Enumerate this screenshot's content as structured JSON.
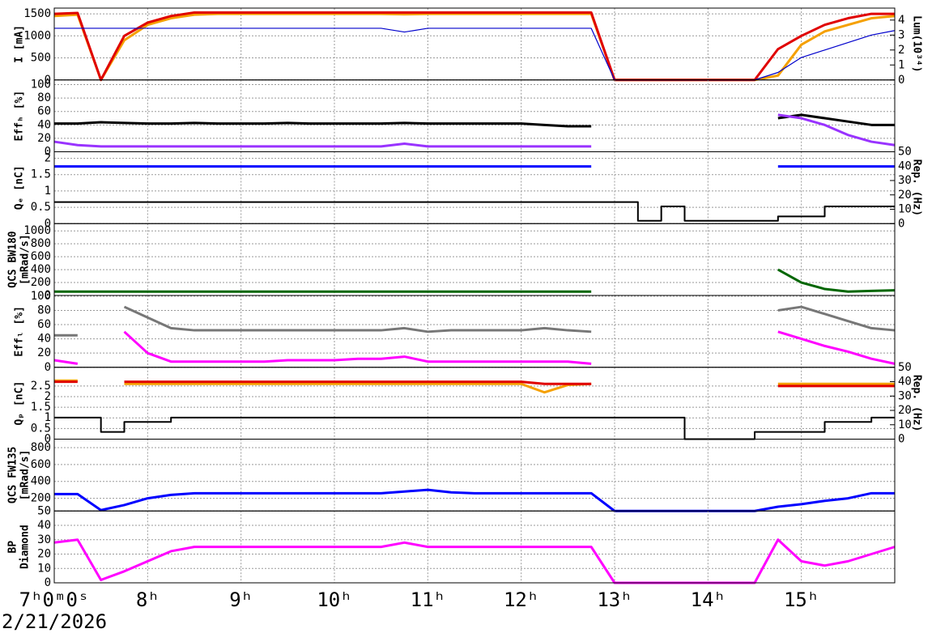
{
  "chart_data": [
    {
      "type": "line",
      "ylabel": [
        "I [mA]"
      ],
      "y2label": [
        "Lum(10³⁴)"
      ],
      "x": [
        7,
        7.25,
        7.5,
        7.75,
        8,
        8.25,
        8.5,
        8.75,
        9,
        9.25,
        9.5,
        9.75,
        10,
        10.25,
        10.5,
        10.75,
        11,
        11.25,
        11.5,
        11.75,
        12,
        12.25,
        12.5,
        12.75,
        13,
        13.25,
        13.5,
        13.75,
        14,
        14.25,
        14.5,
        14.75,
        15,
        15.25,
        15.5,
        15.75,
        16
      ],
      "xlim": [
        7,
        16
      ],
      "xticks": [
        8,
        9,
        10,
        11,
        12,
        13,
        14,
        15
      ],
      "ylim": [
        0,
        1630
      ],
      "yticks": [
        0,
        500,
        1000,
        1500
      ],
      "y2lim": [
        0,
        4.8
      ],
      "y2ticks": [
        0,
        1,
        2,
        3,
        4
      ],
      "grid": true,
      "series": [
        {
          "color": "#f5a000",
          "values": [
            1450,
            1480,
            0,
            900,
            1250,
            1400,
            1480,
            1500,
            1500,
            1500,
            1500,
            1500,
            1500,
            1500,
            1500,
            1490,
            1500,
            1500,
            1500,
            1500,
            1500,
            1500,
            1500,
            1500,
            0,
            0,
            0,
            0,
            0,
            0,
            0,
            100,
            800,
            1100,
            1250,
            1400,
            1450
          ]
        },
        {
          "color": "#e00000",
          "values": [
            1500,
            1520,
            0,
            1000,
            1300,
            1450,
            1530,
            1530,
            1530,
            1530,
            1530,
            1530,
            1530,
            1530,
            1530,
            1530,
            1530,
            1530,
            1530,
            1530,
            1530,
            1530,
            1530,
            1530,
            0,
            0,
            0,
            0,
            0,
            0,
            0,
            700,
            1000,
            1250,
            1400,
            1500,
            1500
          ]
        },
        {
          "color": "#0000cc",
          "axis": "y2",
          "values": [
            3.45,
            3.45,
            3.45,
            3.45,
            3.45,
            3.45,
            3.45,
            3.45,
            3.45,
            3.45,
            3.45,
            3.45,
            3.45,
            3.45,
            3.45,
            3.2,
            3.45,
            3.45,
            3.45,
            3.45,
            3.45,
            3.45,
            3.45,
            3.45,
            0,
            0,
            0,
            0,
            0,
            0,
            0,
            0.5,
            1.5,
            2,
            2.5,
            3,
            3.3
          ]
        }
      ]
    },
    {
      "type": "line",
      "ylabel": [
        "Effₕ [%]"
      ],
      "x": [
        7,
        7.25,
        7.5,
        7.75,
        8,
        8.25,
        8.5,
        8.75,
        9,
        9.25,
        9.5,
        9.75,
        10,
        10.25,
        10.5,
        10.75,
        11,
        11.25,
        11.5,
        11.75,
        12,
        12.25,
        12.5,
        12.75,
        13,
        13.25,
        13.5,
        13.75,
        14,
        14.25,
        14.5,
        14.75,
        15,
        15.25,
        15.5,
        15.75,
        16
      ],
      "xlim": [
        7,
        16
      ],
      "xticks": [
        8,
        9,
        10,
        11,
        12,
        13,
        14,
        15
      ],
      "ylim": [
        0,
        107
      ],
      "yticks": [
        0,
        20,
        40,
        60,
        80,
        100
      ],
      "grid": true,
      "series": [
        {
          "color": "#000000",
          "values": [
            42,
            42,
            44,
            43,
            42,
            42,
            43,
            42,
            42,
            42,
            43,
            42,
            42,
            42,
            42,
            43,
            42,
            42,
            42,
            42,
            42,
            40,
            38,
            38,
            null,
            null,
            null,
            null,
            null,
            null,
            null,
            50,
            55,
            50,
            45,
            40,
            40
          ]
        },
        {
          "color": "#9933ff",
          "values": [
            15,
            10,
            8,
            8,
            8,
            8,
            8,
            8,
            8,
            8,
            8,
            8,
            8,
            8,
            8,
            12,
            8,
            8,
            8,
            8,
            8,
            8,
            8,
            8,
            null,
            null,
            null,
            null,
            null,
            null,
            null,
            55,
            50,
            40,
            25,
            15,
            10
          ]
        }
      ]
    },
    {
      "type": "line",
      "ylabel": [
        "Qₑ [nC]"
      ],
      "y2label": [
        "Rep. (Hz)"
      ],
      "x": [
        7,
        7.25,
        7.5,
        7.75,
        8,
        8.25,
        8.5,
        8.75,
        9,
        9.25,
        9.5,
        9.75,
        10,
        10.25,
        10.5,
        10.75,
        11,
        11.25,
        11.5,
        11.75,
        12,
        12.25,
        12.5,
        12.75,
        13,
        13.25,
        13.5,
        13.75,
        14,
        14.25,
        14.5,
        14.75,
        15,
        15.25,
        15.5,
        15.75,
        16
      ],
      "xlim": [
        7,
        16
      ],
      "xticks": [
        8,
        9,
        10,
        11,
        12,
        13,
        14,
        15
      ],
      "ylim": [
        0,
        2.2
      ],
      "yticks": [
        0,
        0.5,
        1,
        1.5,
        2
      ],
      "y2lim": [
        0,
        50
      ],
      "y2ticks": [
        0,
        10,
        20,
        30,
        40,
        50
      ],
      "grid": true,
      "series": [
        {
          "color": "#0000ff",
          "values": [
            1.75,
            1.75,
            1.75,
            1.75,
            1.75,
            1.75,
            1.75,
            1.75,
            1.75,
            1.75,
            1.75,
            1.75,
            1.75,
            1.75,
            1.75,
            1.75,
            1.75,
            1.75,
            1.75,
            1.75,
            1.75,
            1.75,
            1.75,
            1.75,
            null,
            null,
            null,
            null,
            null,
            null,
            null,
            1.75,
            1.75,
            1.75,
            1.75,
            1.75,
            1.75
          ]
        },
        {
          "color": "#000000",
          "axis": "y2",
          "style": "step",
          "values": [
            15,
            15,
            15,
            15,
            15,
            15,
            15,
            15,
            15,
            15,
            15,
            15,
            15,
            15,
            15,
            15,
            15,
            15,
            15,
            15,
            15,
            15,
            15,
            15,
            15,
            2,
            12,
            2,
            2,
            2,
            2,
            5,
            5,
            12,
            12,
            12,
            12
          ]
        }
      ]
    },
    {
      "type": "line",
      "ylabel": [
        "QCS BW180",
        "[mRad/s]"
      ],
      "x": [
        7,
        7.25,
        7.5,
        7.75,
        8,
        8.25,
        8.5,
        8.75,
        9,
        9.25,
        9.5,
        9.75,
        10,
        10.25,
        10.5,
        10.75,
        11,
        11.25,
        11.5,
        11.75,
        12,
        12.25,
        12.5,
        12.75,
        13,
        13.25,
        13.5,
        13.75,
        14,
        14.25,
        14.5,
        14.75,
        15,
        15.25,
        15.5,
        15.75,
        16
      ],
      "xlim": [
        7,
        16
      ],
      "xticks": [
        8,
        9,
        10,
        11,
        12,
        13,
        14,
        15
      ],
      "ylim": [
        0,
        1112
      ],
      "yticks": [
        0,
        200,
        400,
        600,
        800,
        1000
      ],
      "grid": true,
      "series": [
        {
          "color": "#006600",
          "values": [
            60,
            60,
            60,
            60,
            60,
            60,
            60,
            60,
            60,
            60,
            60,
            60,
            60,
            60,
            60,
            60,
            60,
            60,
            60,
            60,
            60,
            60,
            60,
            60,
            null,
            null,
            null,
            null,
            null,
            null,
            null,
            400,
            200,
            100,
            60,
            70,
            80
          ]
        }
      ]
    },
    {
      "type": "line",
      "ylabel": [
        "Effₗ [%]"
      ],
      "x": [
        7,
        7.25,
        7.5,
        7.75,
        8,
        8.25,
        8.5,
        8.75,
        9,
        9.25,
        9.5,
        9.75,
        10,
        10.25,
        10.5,
        10.75,
        11,
        11.25,
        11.5,
        11.75,
        12,
        12.25,
        12.5,
        12.75,
        13,
        13.25,
        13.5,
        13.75,
        14,
        14.25,
        14.5,
        14.75,
        15,
        15.25,
        15.5,
        15.75,
        16
      ],
      "xlim": [
        7,
        16
      ],
      "xticks": [
        8,
        9,
        10,
        11,
        12,
        13,
        14,
        15
      ],
      "ylim": [
        0,
        101
      ],
      "yticks": [
        0,
        20,
        40,
        60,
        80,
        100
      ],
      "grid": true,
      "series": [
        {
          "color": "#777777",
          "values": [
            45,
            45,
            null,
            85,
            70,
            55,
            52,
            52,
            52,
            52,
            52,
            52,
            52,
            52,
            52,
            55,
            50,
            52,
            52,
            52,
            52,
            55,
            52,
            50,
            null,
            null,
            null,
            null,
            null,
            null,
            null,
            80,
            85,
            75,
            65,
            55,
            52
          ]
        },
        {
          "color": "#ff00ff",
          "values": [
            10,
            5,
            null,
            50,
            20,
            8,
            8,
            8,
            8,
            8,
            10,
            10,
            10,
            12,
            12,
            15,
            8,
            8,
            8,
            8,
            8,
            8,
            8,
            5,
            null,
            null,
            null,
            null,
            null,
            null,
            null,
            50,
            40,
            30,
            22,
            12,
            5
          ]
        }
      ]
    },
    {
      "type": "line",
      "ylabel": [
        "Qₚ [nC]"
      ],
      "y2label": [
        "Rep. (Hz)"
      ],
      "x": [
        7,
        7.25,
        7.5,
        7.75,
        8,
        8.25,
        8.5,
        8.75,
        9,
        9.25,
        9.5,
        9.75,
        10,
        10.25,
        10.5,
        10.75,
        11,
        11.25,
        11.5,
        11.75,
        12,
        12.25,
        12.5,
        12.75,
        13,
        13.25,
        13.5,
        13.75,
        14,
        14.25,
        14.5,
        14.75,
        15,
        15.25,
        15.5,
        15.75,
        16
      ],
      "xlim": [
        7,
        16
      ],
      "xticks": [
        8,
        9,
        10,
        11,
        12,
        13,
        14,
        15
      ],
      "ylim": [
        0,
        3.38
      ],
      "yticks": [
        0,
        0.5,
        1,
        1.5,
        2,
        2.5
      ],
      "y2lim": [
        0,
        50
      ],
      "y2ticks": [
        0,
        10,
        20,
        30,
        40,
        50
      ],
      "grid": true,
      "series": [
        {
          "color": "#f5a000",
          "values": [
            2.75,
            2.75,
            null,
            2.6,
            2.6,
            2.6,
            2.6,
            2.6,
            2.6,
            2.6,
            2.6,
            2.6,
            2.6,
            2.6,
            2.6,
            2.6,
            2.6,
            2.6,
            2.6,
            2.6,
            2.6,
            2.2,
            2.55,
            2.6,
            null,
            null,
            null,
            null,
            null,
            null,
            null,
            2.6,
            2.6,
            2.6,
            2.6,
            2.6,
            2.6
          ]
        },
        {
          "color": "#e00000",
          "values": [
            2.7,
            2.7,
            null,
            2.7,
            2.7,
            2.7,
            2.7,
            2.7,
            2.7,
            2.7,
            2.7,
            2.7,
            2.7,
            2.7,
            2.7,
            2.7,
            2.7,
            2.7,
            2.7,
            2.7,
            2.7,
            2.6,
            2.6,
            2.6,
            null,
            null,
            null,
            null,
            null,
            null,
            null,
            2.5,
            2.5,
            2.5,
            2.5,
            2.5,
            2.5
          ]
        },
        {
          "color": "#000000",
          "axis": "y2",
          "style": "step",
          "values": [
            15,
            15,
            5,
            12,
            12,
            15,
            15,
            15,
            15,
            15,
            15,
            15,
            15,
            15,
            15,
            15,
            15,
            15,
            15,
            15,
            15,
            15,
            15,
            15,
            15,
            15,
            15,
            0,
            0,
            0,
            5,
            5,
            5,
            12,
            12,
            15,
            15
          ]
        }
      ]
    },
    {
      "type": "line",
      "ylabel": [
        "QCS FW135",
        "[mRad/s]"
      ],
      "x": [
        7,
        7.25,
        7.5,
        7.75,
        8,
        8.25,
        8.5,
        8.75,
        9,
        9.25,
        9.5,
        9.75,
        10,
        10.25,
        10.5,
        10.75,
        11,
        11.25,
        11.5,
        11.75,
        12,
        12.25,
        12.5,
        12.75,
        13,
        13.25,
        13.5,
        13.75,
        14,
        14.25,
        14.5,
        14.75,
        15,
        15.25,
        15.5,
        15.75,
        16
      ],
      "xlim": [
        7,
        16
      ],
      "xticks": [
        8,
        9,
        10,
        11,
        12,
        13,
        14,
        15
      ],
      "ylim": [
        50,
        900
      ],
      "yticks": [
        50,
        200,
        400,
        600,
        800
      ],
      "grid": true,
      "series": [
        {
          "color": "#0000ff",
          "values": [
            250,
            250,
            60,
            120,
            200,
            240,
            260,
            260,
            260,
            260,
            260,
            260,
            260,
            260,
            260,
            280,
            300,
            270,
            260,
            260,
            260,
            260,
            260,
            260,
            50,
            50,
            50,
            50,
            50,
            50,
            50,
            100,
            130,
            170,
            200,
            260,
            260
          ]
        }
      ]
    },
    {
      "type": "line",
      "ylabel": [
        "BP",
        "Diamond"
      ],
      "x": [
        7,
        7.25,
        7.5,
        7.75,
        8,
        8.25,
        8.5,
        8.75,
        9,
        9.25,
        9.5,
        9.75,
        10,
        10.25,
        10.5,
        10.75,
        11,
        11.25,
        11.5,
        11.75,
        12,
        12.25,
        12.5,
        12.75,
        13,
        13.25,
        13.5,
        13.75,
        14,
        14.25,
        14.5,
        14.75,
        15,
        15.25,
        15.5,
        15.75,
        16
      ],
      "xlim": [
        7,
        16
      ],
      "xticks": [
        {
          "value": 7,
          "label": "7ʰ0ᵐ0ˢ"
        },
        {
          "value": 8,
          "label": "8ʰ"
        },
        {
          "value": 9,
          "label": "9ʰ"
        },
        {
          "value": 10,
          "label": "10ʰ"
        },
        {
          "value": 11,
          "label": "11ʰ"
        },
        {
          "value": 12,
          "label": "12ʰ"
        },
        {
          "value": 13,
          "label": "13ʰ"
        },
        {
          "value": 14,
          "label": "14ʰ"
        },
        {
          "value": 15,
          "label": "15ʰ"
        }
      ],
      "date_label": "2/21/2026",
      "ylim": [
        0,
        50
      ],
      "yticks": [
        0,
        10,
        20,
        30,
        40
      ],
      "grid": true,
      "series": [
        {
          "color": "#ff00ff",
          "values": [
            28,
            30,
            2,
            8,
            15,
            22,
            25,
            25,
            25,
            25,
            25,
            25,
            25,
            25,
            25,
            28,
            25,
            25,
            25,
            25,
            25,
            25,
            25,
            25,
            0,
            0,
            0,
            0,
            0,
            0,
            0,
            30,
            15,
            12,
            15,
            20,
            25
          ]
        }
      ]
    }
  ]
}
